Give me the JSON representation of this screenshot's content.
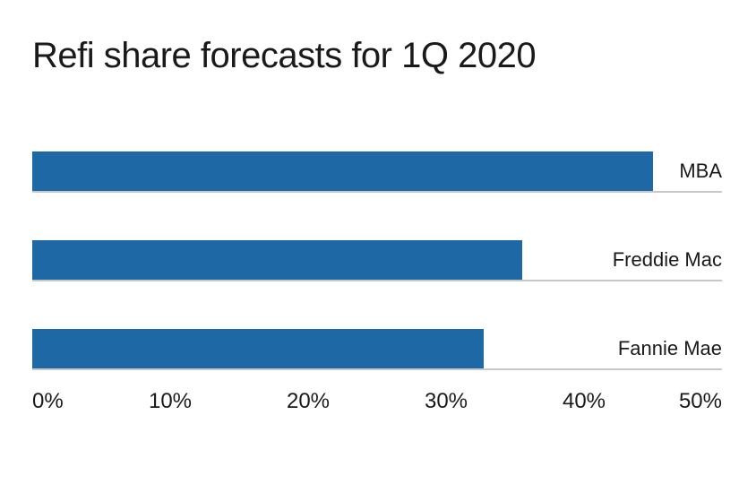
{
  "title": "Refi share forecasts for 1Q 2020",
  "chart_data": {
    "type": "bar",
    "orientation": "horizontal",
    "title": "Refi share forecasts for 1Q 2020",
    "categories": [
      "MBA",
      "Freddie Mac",
      "Fannie Mae"
    ],
    "values": [
      45,
      35.5,
      32.7
    ],
    "unit": "%",
    "xlim": [
      0,
      50
    ],
    "tick_labels": [
      "0%",
      "10%",
      "20%",
      "30%",
      "40%",
      "50%"
    ],
    "grid": false,
    "legend": false,
    "label_position": "right-of-plot",
    "bar_color": "#1e69a5",
    "axis_line_color": "#c8c8c8",
    "text_color": "#1a1a1a",
    "background_color": "#ffffff"
  }
}
